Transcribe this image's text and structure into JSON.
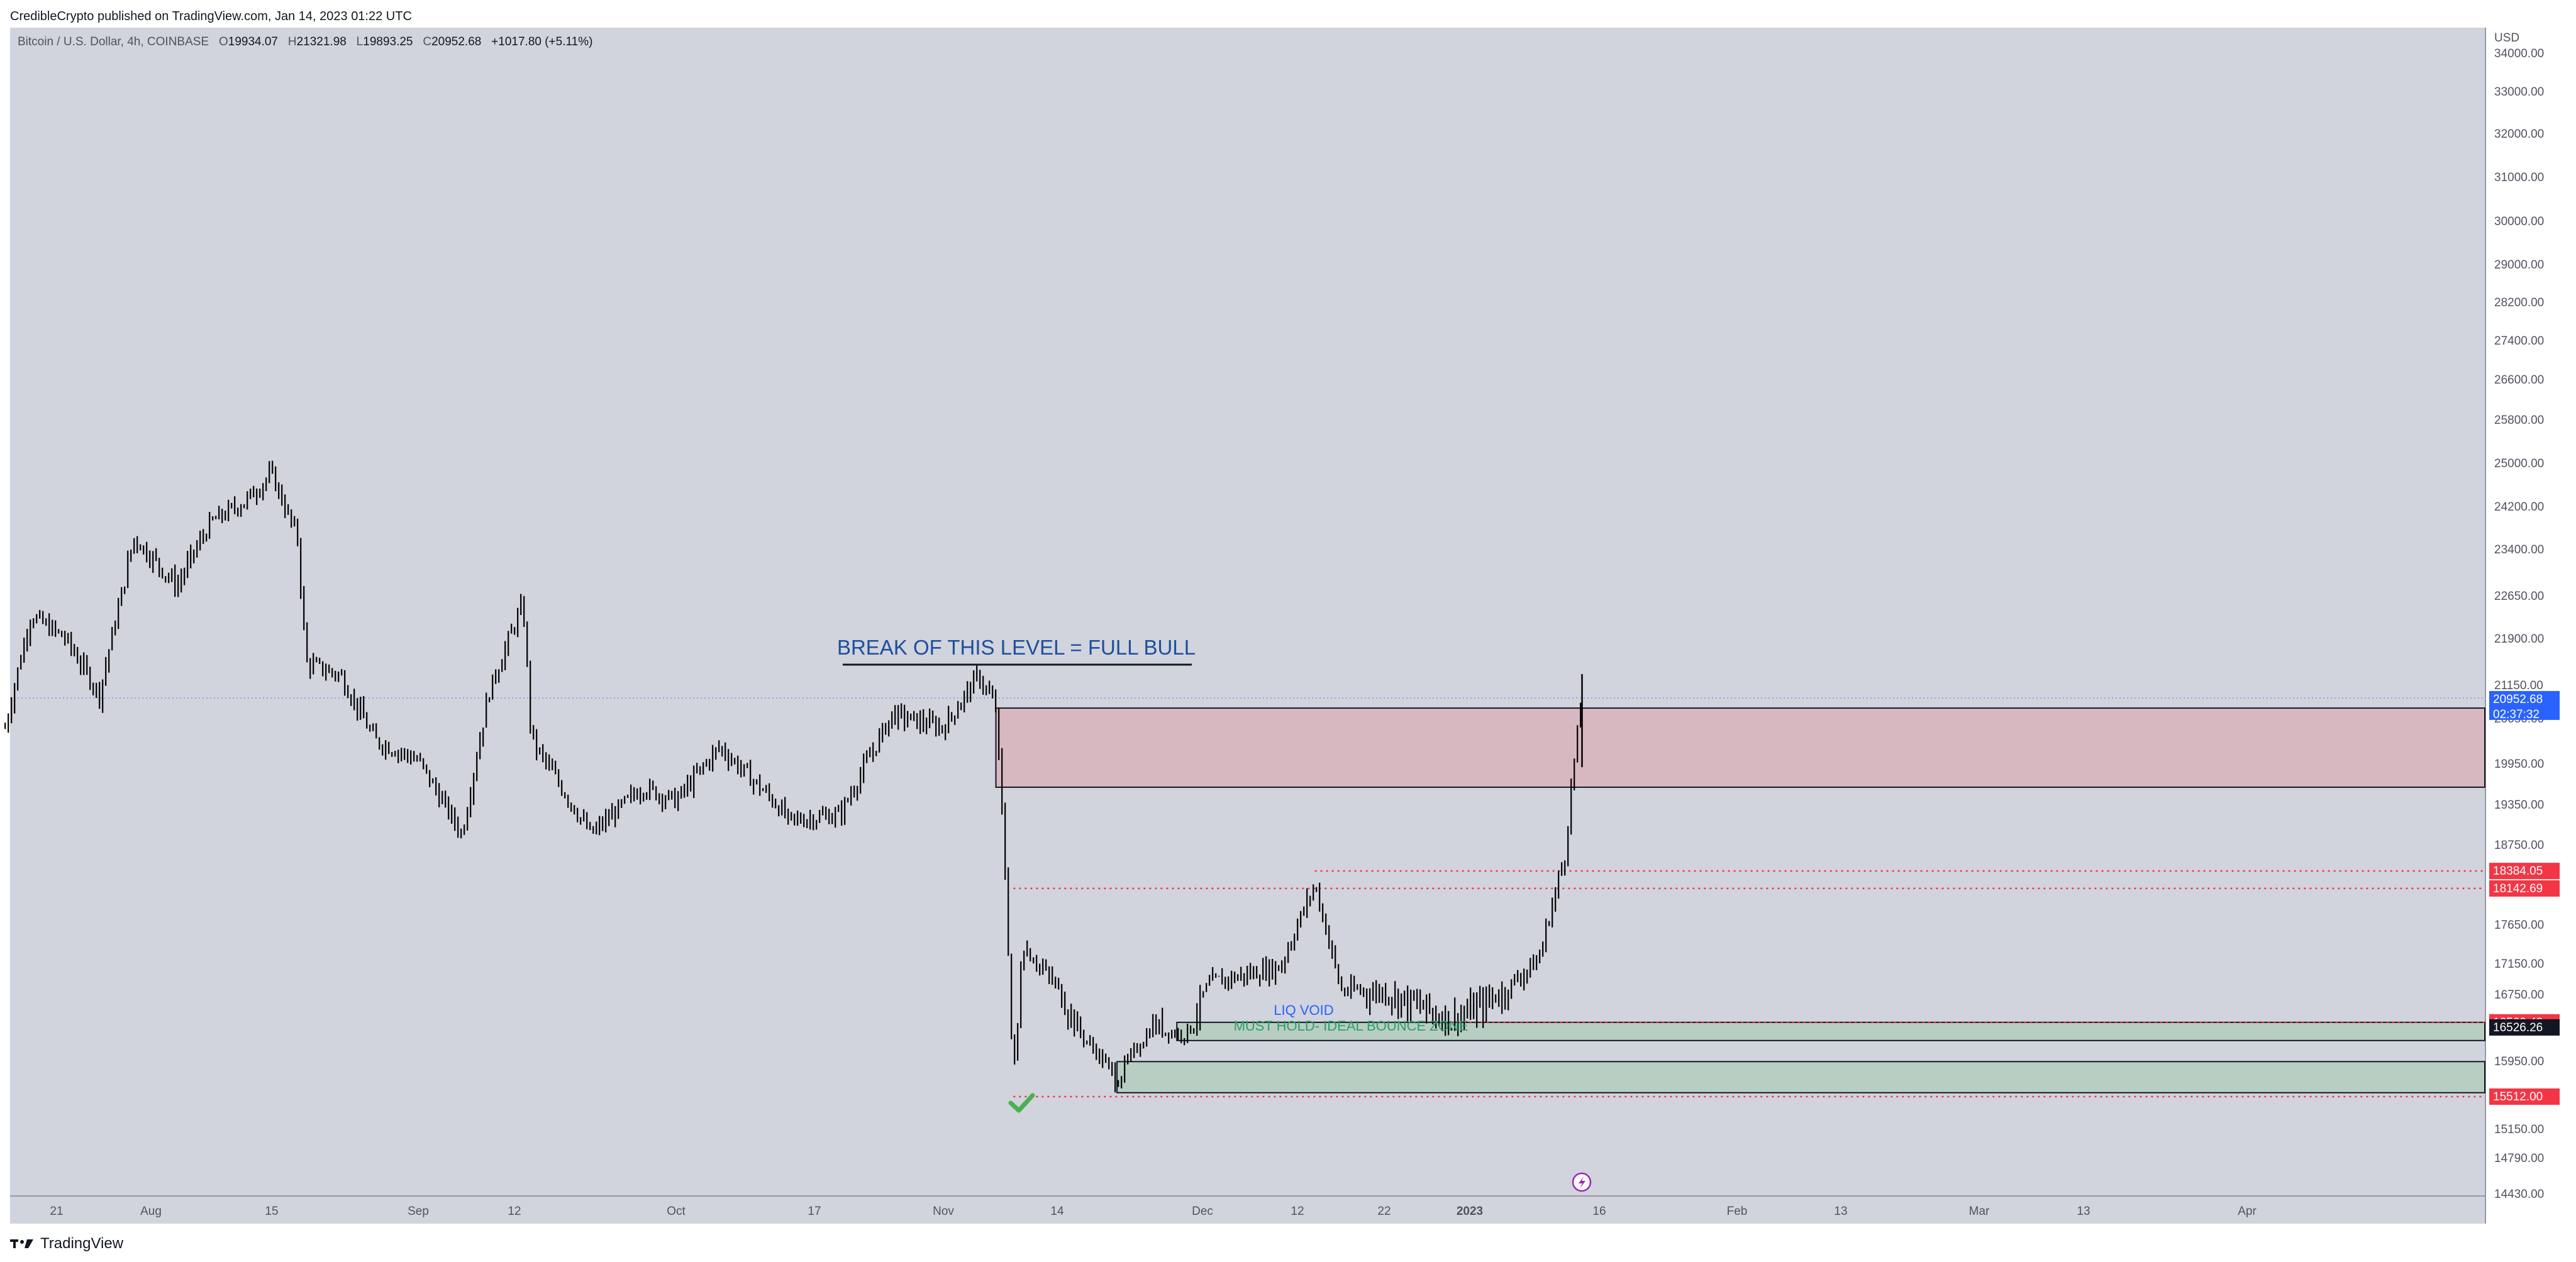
{
  "header": {
    "text": "CredibleCrypto published on TradingView.com, Jan 14, 2023 01:22 UTC"
  },
  "ohlc": {
    "symbol": "Bitcoin / U.S. Dollar, 4h, COINBASE",
    "o_label": "O",
    "o": "19934.07",
    "h_label": "H",
    "h": "21321.98",
    "l_label": "L",
    "l": "19893.25",
    "c_label": "C",
    "c": "20952.68",
    "change": "+1017.80 (+5.11%)"
  },
  "currency": "USD",
  "footer": {
    "brand": "TradingView"
  },
  "colors": {
    "background": "#d1d4dc",
    "candle": "#000000",
    "resistance_zone": "#d8b8c0",
    "support_zone": "#b8cec3",
    "dotted_level": "#f23645",
    "current_price": "#2962ff",
    "annotation": "#1d4e9e",
    "support_text": "#2e9e6a",
    "check": "#4caf50"
  },
  "chart_data": {
    "type": "candlestick",
    "symbol": "Bitcoin / U.S. Dollar",
    "timeframe": "4h",
    "exchange": "COINBASE",
    "x_tick_labels": [
      "21",
      "Aug",
      "15",
      "Sep",
      "12",
      "Oct",
      "17",
      "Nov",
      "14",
      "Dec",
      "12",
      "22",
      "2023",
      "16",
      "Feb",
      "13",
      "Mar",
      "13",
      "Apr"
    ],
    "y_tick_labels": [
      "34000.00",
      "33000.00",
      "32000.00",
      "31000.00",
      "30000.00",
      "29000.00",
      "28200.00",
      "27400.00",
      "26600.00",
      "25800.00",
      "25000.00",
      "24200.00",
      "23400.00",
      "22650.00",
      "21900.00",
      "21150.00",
      "20650.00",
      "19950.00",
      "19350.00",
      "18750.00",
      "17650.00",
      "17150.00",
      "16750.00",
      "15950.00",
      "15150.00",
      "14790.00",
      "14430.00"
    ],
    "price_path": [
      [
        "2022-07-15",
        20500
      ],
      [
        "2022-07-18",
        22300
      ],
      [
        "2022-07-22",
        21900
      ],
      [
        "2022-07-26",
        21000
      ],
      [
        "2022-07-30",
        23600
      ],
      [
        "2022-08-04",
        22800
      ],
      [
        "2022-08-08",
        23900
      ],
      [
        "2022-08-12",
        24300
      ],
      [
        "2022-08-15",
        24800
      ],
      [
        "2022-08-18",
        23600
      ],
      [
        "2022-08-19",
        21500
      ],
      [
        "2022-08-23",
        21300
      ],
      [
        "2022-08-27",
        20300
      ],
      [
        "2022-09-01",
        20000
      ],
      [
        "2022-09-06",
        18900
      ],
      [
        "2022-09-09",
        21000
      ],
      [
        "2022-09-13",
        22500
      ],
      [
        "2022-09-14",
        20300
      ],
      [
        "2022-09-19",
        19300
      ],
      [
        "2022-09-21",
        18900
      ],
      [
        "2022-09-27",
        19600
      ],
      [
        "2022-10-01",
        19400
      ],
      [
        "2022-10-06",
        20200
      ],
      [
        "2022-10-13",
        19300
      ],
      [
        "2022-10-14",
        19100
      ],
      [
        "2022-10-20",
        19200
      ],
      [
        "2022-10-26",
        20700
      ],
      [
        "2022-11-01",
        20500
      ],
      [
        "2022-11-05",
        21300
      ],
      [
        "2022-11-07",
        20800
      ],
      [
        "2022-11-08",
        18500
      ],
      [
        "2022-11-09",
        15700
      ],
      [
        "2022-11-10",
        17400
      ],
      [
        "2022-11-15",
        16700
      ],
      [
        "2022-11-21",
        15700
      ],
      [
        "2022-11-25",
        16500
      ],
      [
        "2022-11-29",
        16400
      ],
      [
        "2022-12-02",
        16900
      ],
      [
        "2022-12-10",
        17100
      ],
      [
        "2022-12-14",
        18200
      ],
      [
        "2022-12-17",
        16800
      ],
      [
        "2022-12-22",
        16800
      ],
      [
        "2022-12-30",
        16550
      ],
      [
        "2023-01-05",
        16800
      ],
      [
        "2023-01-09",
        17200
      ],
      [
        "2023-01-12",
        18600
      ],
      [
        "2023-01-13",
        19900
      ],
      [
        "2023-01-14",
        20950
      ]
    ],
    "last_price": 20952.68,
    "countdown": "02:37:32",
    "zones": [
      {
        "name": "resistance",
        "from": 19600,
        "to": 20800
      },
      {
        "name": "liq-void-must-hold",
        "from": 16300,
        "to": 16560.48
      },
      {
        "name": "lower-support",
        "from": 15560,
        "to": 15940
      }
    ],
    "levels": [
      {
        "value": 18384.05,
        "label": "18384.05",
        "color": "#f23645",
        "style": "dotted"
      },
      {
        "value": 18142.69,
        "label": "18142.69",
        "color": "#f23645",
        "style": "dotted"
      },
      {
        "value": 16560.48,
        "label": "16560.48",
        "color": "#f23645",
        "style": "dotted"
      },
      {
        "value": 16526.26,
        "label": "16526.26",
        "color": "#131722",
        "style": "none"
      },
      {
        "value": 15512.0,
        "label": "15512.00",
        "color": "#f23645",
        "style": "dotted"
      }
    ],
    "annotations": {
      "break_level": "BREAK OF THIS LEVEL = FULL BULL",
      "liq_void": "LIQ VOID",
      "must_hold": "MUST HOLD- IDEAL BOUNCE ZONE"
    }
  }
}
